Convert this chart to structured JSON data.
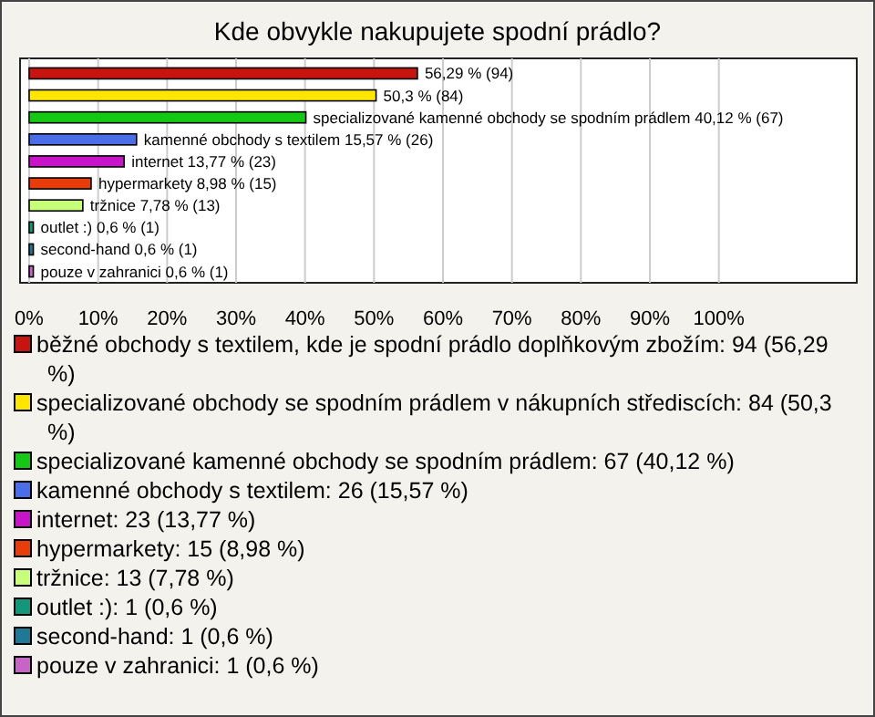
{
  "chart_data": {
    "type": "bar",
    "orientation": "horizontal",
    "title": "Kde obvykle nakupujete spodní prádlo?",
    "categories": [
      null,
      null,
      null,
      null,
      null,
      null,
      null,
      null,
      null,
      null
    ],
    "xlim": [
      0,
      120
    ],
    "xticks": [
      {
        "value": 0,
        "label": "0%"
      },
      {
        "value": 10,
        "label": "10%"
      },
      {
        "value": 20,
        "label": "20%"
      },
      {
        "value": 30,
        "label": "30%"
      },
      {
        "value": 40,
        "label": "40%"
      },
      {
        "value": 50,
        "label": "50%"
      },
      {
        "value": 60,
        "label": "60%"
      },
      {
        "value": 70,
        "label": "70%"
      },
      {
        "value": 80,
        "label": "80%"
      },
      {
        "value": 90,
        "label": "90%"
      },
      {
        "value": 100,
        "label": "100%"
      }
    ],
    "grid": "x",
    "legend": "bottom",
    "tick_labels": "x",
    "series": [
      {
        "name": "běžné obchody s textilem, kde je spodní prádlo doplňkovým zbožím: 94 (56,29 %)",
        "color": "#c8140f",
        "values": [
          56.29,
          null,
          null,
          null,
          null,
          null,
          null,
          null,
          null,
          null
        ],
        "value_labels": [
          "56,29 % (94)",
          null,
          null,
          null,
          null,
          null,
          null,
          null,
          null,
          null
        ]
      },
      {
        "name": "specializované obchody se spodním prádlem v nákupních střediscích: 84 (50,3 %)",
        "color": "#ffe600",
        "values": [
          null,
          50.3,
          null,
          null,
          null,
          null,
          null,
          null,
          null,
          null
        ],
        "value_labels": [
          null,
          "50,3 % (84)",
          null,
          null,
          null,
          null,
          null,
          null,
          null,
          null
        ]
      },
      {
        "name": "specializované kamenné obchody se spodním prádlem: 67 (40,12 %)",
        "color": "#14c814",
        "values": [
          null,
          null,
          40.12,
          null,
          null,
          null,
          null,
          null,
          null,
          null
        ],
        "value_labels": [
          null,
          null,
          "specializované kamenné obchody se spodním prádlem 40,12 % (67)",
          null,
          null,
          null,
          null,
          null,
          null,
          null
        ]
      },
      {
        "name": "kamenné obchody s textilem: 26 (15,57 %)",
        "color": "#4a6ee8",
        "values": [
          null,
          null,
          null,
          15.57,
          null,
          null,
          null,
          null,
          null,
          null
        ],
        "value_labels": [
          null,
          null,
          null,
          "kamenné obchody s textilem 15,57 % (26)",
          null,
          null,
          null,
          null,
          null,
          null
        ]
      },
      {
        "name": "internet: 23 (13,77 %)",
        "color": "#c814c8",
        "values": [
          null,
          null,
          null,
          null,
          13.77,
          null,
          null,
          null,
          null,
          null
        ],
        "value_labels": [
          null,
          null,
          null,
          null,
          "internet 13,77 % (23)",
          null,
          null,
          null,
          null,
          null
        ]
      },
      {
        "name": "hypermarkety: 15 (8,98 %)",
        "color": "#e83c0a",
        "values": [
          null,
          null,
          null,
          null,
          null,
          8.98,
          null,
          null,
          null,
          null
        ],
        "value_labels": [
          null,
          null,
          null,
          null,
          null,
          "hypermarkety 8,98 % (15)",
          null,
          null,
          null,
          null
        ]
      },
      {
        "name": "tržnice: 13 (7,78 %)",
        "color": "#c8ff78",
        "values": [
          null,
          null,
          null,
          null,
          null,
          null,
          7.78,
          null,
          null,
          null
        ],
        "value_labels": [
          null,
          null,
          null,
          null,
          null,
          null,
          "tržnice 7,78 % (13)",
          null,
          null,
          null
        ]
      },
      {
        "name": "outlet :): 1 (0,6 %)",
        "color": "#14967a",
        "values": [
          null,
          null,
          null,
          null,
          null,
          null,
          null,
          0.6,
          null,
          null
        ],
        "value_labels": [
          null,
          null,
          null,
          null,
          null,
          null,
          null,
          "outlet :) 0,6 % (1)",
          null,
          null
        ]
      },
      {
        "name": "second-hand: 1 (0,6 %)",
        "color": "#1e7896",
        "values": [
          null,
          null,
          null,
          null,
          null,
          null,
          null,
          null,
          0.6,
          null
        ],
        "value_labels": [
          null,
          null,
          null,
          null,
          null,
          null,
          null,
          null,
          "second-hand 0,6 % (1)",
          null
        ]
      },
      {
        "name": "pouze v zahranici: 1 (0,6 %)",
        "color": "#c864c8",
        "values": [
          null,
          null,
          null,
          null,
          null,
          null,
          null,
          null,
          null,
          0.6
        ],
        "value_labels": [
          null,
          null,
          null,
          null,
          null,
          null,
          null,
          null,
          null,
          "pouze v zahranici 0,6 % (1)"
        ]
      }
    ]
  }
}
